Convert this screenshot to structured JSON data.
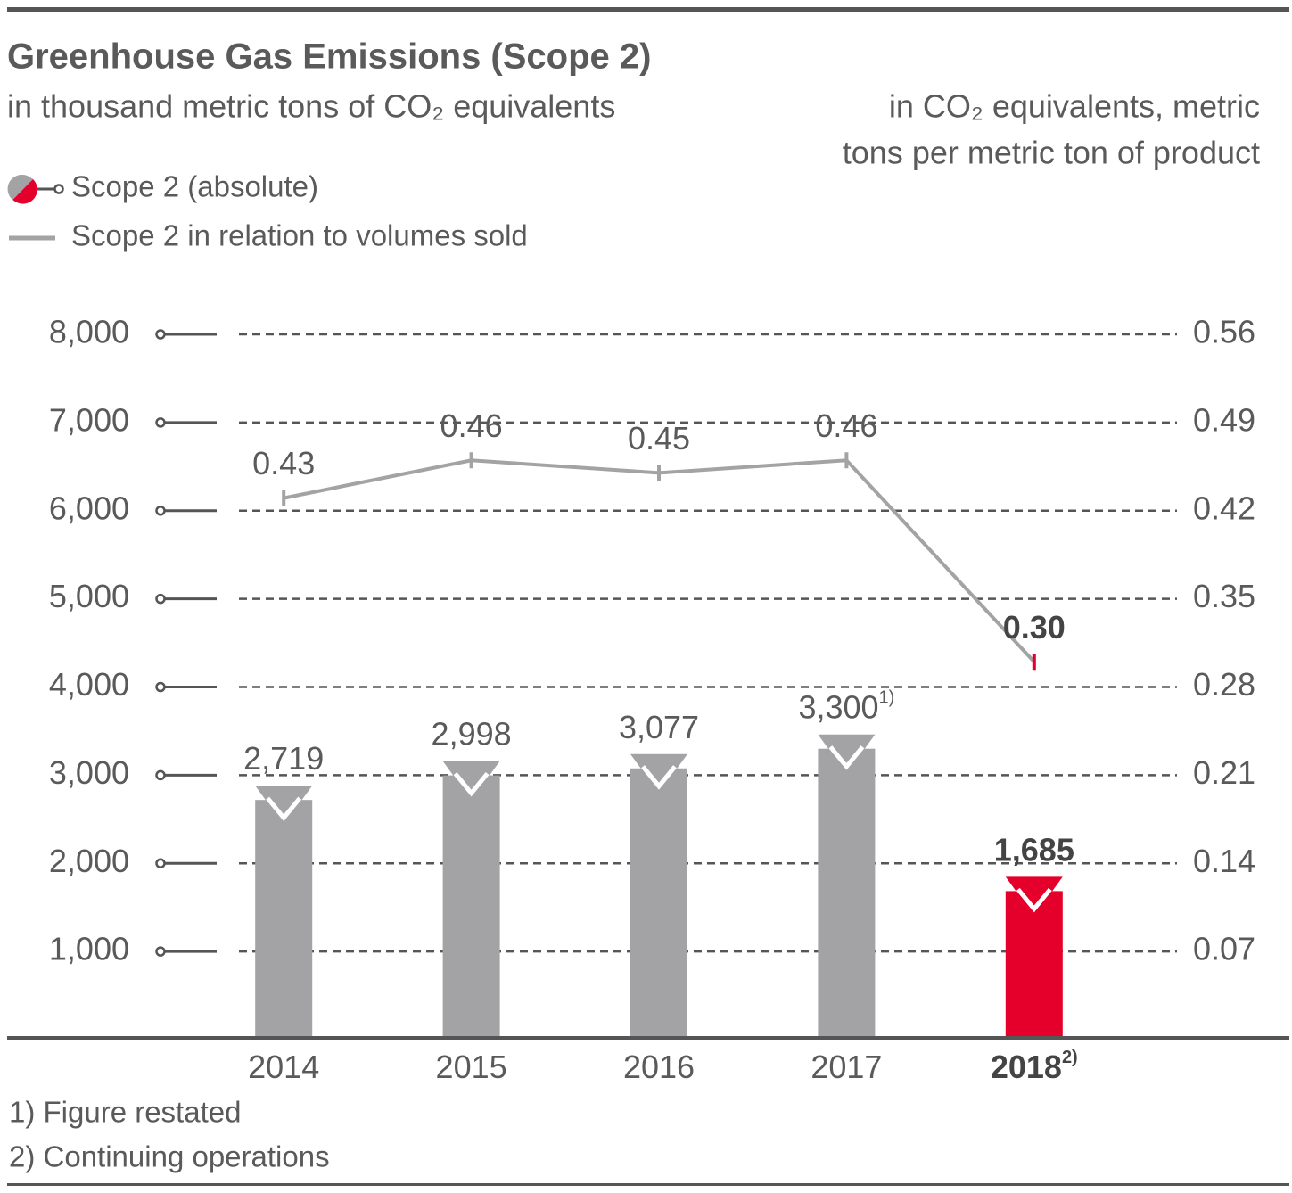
{
  "chart_data": {
    "type": "bar-line",
    "title": "Greenhouse Gas Emissions (Scope 2)",
    "y_label": "in thousand metric tons of CO₂ equivalents",
    "y2_label": [
      "in CO₂ equivalents, metric",
      "tons per metric ton of product"
    ],
    "categories": [
      "2014",
      "2015",
      "2016",
      "2017",
      "2018"
    ],
    "category_notes": [
      null,
      null,
      null,
      null,
      "2)"
    ],
    "highlight_index": 4,
    "series": [
      {
        "name": "Scope 2 (absolute)",
        "type": "bar",
        "color": "#a3a3a5",
        "highlight_color": "#e4002b",
        "values": [
          2719,
          2998,
          3077,
          3300,
          1685
        ],
        "value_labels": [
          "2,719",
          "2,998",
          "3,077",
          "3,300",
          "1,685"
        ],
        "value_label_notes": [
          null,
          null,
          null,
          "1)",
          null
        ]
      },
      {
        "name": "Scope 2 in relation to volumes sold",
        "type": "line",
        "axis": "y2",
        "color": "#a3a3a5",
        "highlight_color": "#e4002b",
        "values": [
          0.43,
          0.46,
          0.45,
          0.46,
          0.3
        ],
        "value_labels": [
          "0.43",
          "0.46",
          "0.45",
          "0.46",
          "0.30"
        ]
      }
    ],
    "ylim": [
      0,
      8000
    ],
    "yticks": [
      {
        "value": 1000,
        "label": "1,000"
      },
      {
        "value": 2000,
        "label": "2,000"
      },
      {
        "value": 3000,
        "label": "3,000"
      },
      {
        "value": 4000,
        "label": "4,000"
      },
      {
        "value": 5000,
        "label": "5,000"
      },
      {
        "value": 6000,
        "label": "6,000"
      },
      {
        "value": 7000,
        "label": "7,000"
      },
      {
        "value": 8000,
        "label": "8,000"
      }
    ],
    "y2lim": [
      0,
      0.56
    ],
    "y2ticks": [
      0.07,
      0.14,
      0.21,
      0.28,
      0.35,
      0.42,
      0.49,
      0.56
    ],
    "grid": true,
    "footnotes": [
      "1) Figure restated",
      "2) Continuing operations"
    ]
  }
}
